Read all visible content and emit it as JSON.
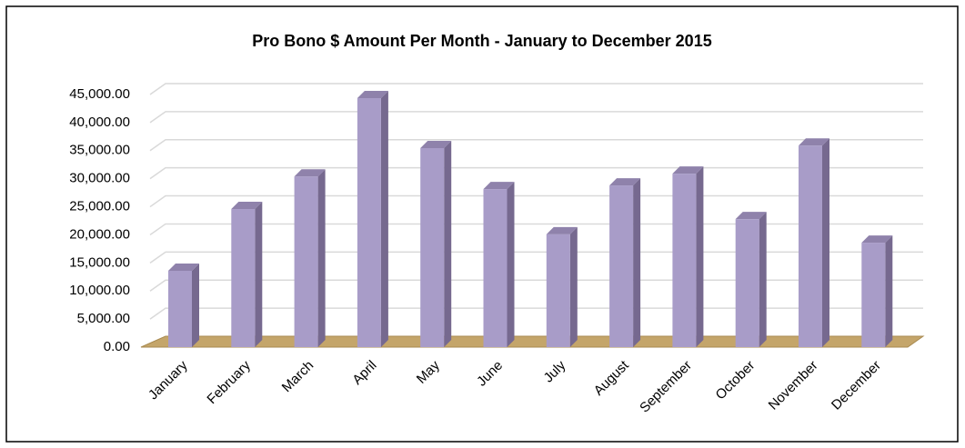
{
  "chart_data": {
    "type": "bar3d",
    "title": "Pro Bono $ Amount Per Month - January to December 2015",
    "categories": [
      "January",
      "February",
      "March",
      "April",
      "May",
      "June",
      "July",
      "August",
      "September",
      "October",
      "November",
      "December"
    ],
    "values": [
      13600,
      24600,
      30400,
      44350,
      35450,
      28150,
      20100,
      28800,
      30900,
      22800,
      35900,
      18600
    ],
    "color": "#a89cc8",
    "ylim": [
      0,
      45000
    ],
    "yticks": [
      {
        "value": 0,
        "label": "0.00"
      },
      {
        "value": 5000,
        "label": "5,000.00"
      },
      {
        "value": 10000,
        "label": "10,000.00"
      },
      {
        "value": 15000,
        "label": "15,000.00"
      },
      {
        "value": 20000,
        "label": "20,000.00"
      },
      {
        "value": 25000,
        "label": "25,000.00"
      },
      {
        "value": 30000,
        "label": "30,000.00"
      },
      {
        "value": 35000,
        "label": "35,000.00"
      },
      {
        "value": 40000,
        "label": "40,000.00"
      },
      {
        "value": 45000,
        "label": "45,000.00"
      }
    ],
    "grid": true
  }
}
